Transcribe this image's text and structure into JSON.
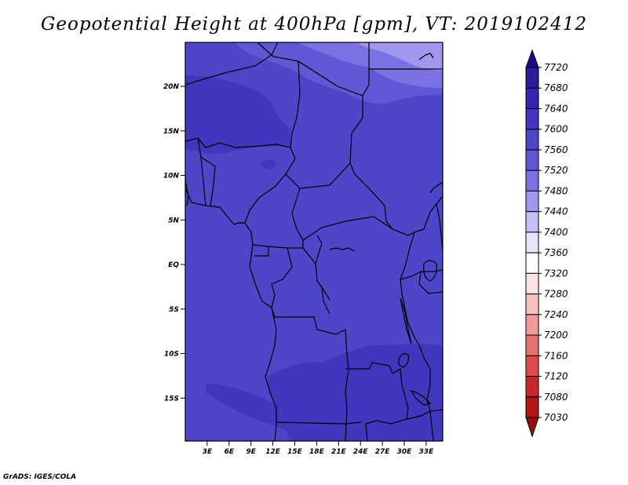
{
  "title": "Geopotential Height at 400hPa [gpm], VT: 2019102412",
  "credit": "GrADS: IGES/COLA",
  "map": {
    "lat_labels": [
      {
        "lat": 20,
        "label": "20N"
      },
      {
        "lat": 15,
        "label": "15N"
      },
      {
        "lat": 10,
        "label": "10N"
      },
      {
        "lat": 5,
        "label": "5N"
      },
      {
        "lat": 0,
        "label": "EQ"
      },
      {
        "lat": -5,
        "label": "5S"
      },
      {
        "lat": -10,
        "label": "10S"
      },
      {
        "lat": -15,
        "label": "15S"
      }
    ],
    "lon_labels": [
      {
        "lon": 3,
        "label": "3E"
      },
      {
        "lon": 6,
        "label": "6E"
      },
      {
        "lon": 9,
        "label": "9E"
      },
      {
        "lon": 12,
        "label": "12E"
      },
      {
        "lon": 15,
        "label": "15E"
      },
      {
        "lon": 18,
        "label": "18E"
      },
      {
        "lon": 21,
        "label": "21E"
      },
      {
        "lon": 24,
        "label": "24E"
      },
      {
        "lon": 27,
        "label": "27E"
      },
      {
        "lon": 30,
        "label": "30E"
      },
      {
        "lon": 33,
        "label": "33E"
      }
    ]
  },
  "colorbar": {
    "levels": [
      "7720",
      "7680",
      "7640",
      "7600",
      "7560",
      "7520",
      "7480",
      "7440",
      "7400",
      "7360",
      "7320",
      "7280",
      "7240",
      "7200",
      "7160",
      "7120",
      "7080",
      "7030"
    ],
    "colors": [
      "#1a0c87",
      "#2a1c9a",
      "#3524ae",
      "#4136be",
      "#4e46c8",
      "#5e58d4",
      "#7a72e2",
      "#9f98ee",
      "#c4c0f6",
      "#e6e4fb",
      "#ffffff",
      "#fde2e2",
      "#f8c0c0",
      "#f29a9a",
      "#e87272",
      "#dd4c4c",
      "#c82a2a",
      "#b01616",
      "#9a0c0c"
    ]
  },
  "field_colors": {
    "c7560": "#4e46c8",
    "c7600": "#4136be",
    "c7520": "#5e58d4",
    "c7480": "#7a72e2",
    "c7440": "#9f98ee"
  }
}
